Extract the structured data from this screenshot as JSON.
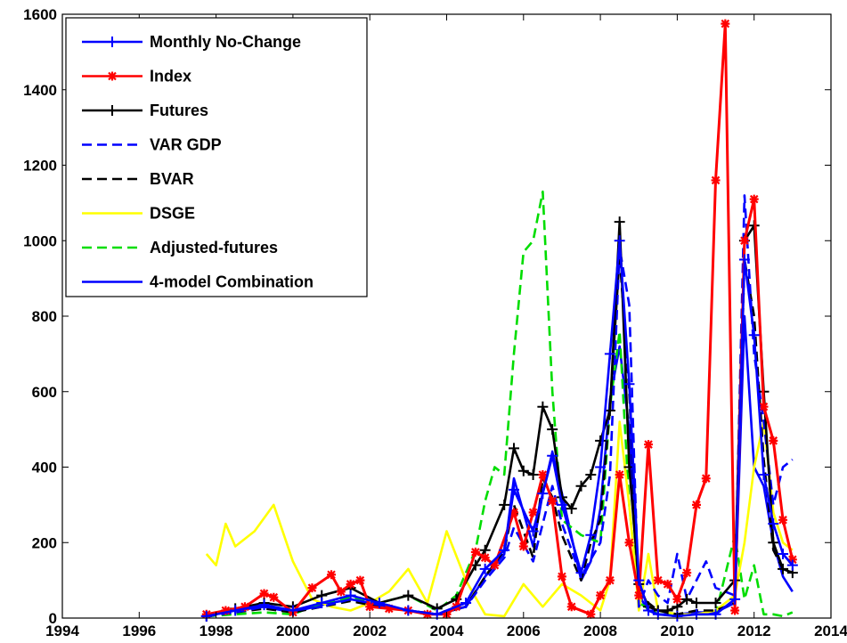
{
  "chart_data": {
    "type": "line",
    "xlim": [
      1994,
      2014
    ],
    "ylim": [
      0,
      1600
    ],
    "xticks": [
      1994,
      1996,
      1998,
      2000,
      2002,
      2004,
      2006,
      2008,
      2010,
      2012,
      2014
    ],
    "yticks": [
      0,
      200,
      400,
      600,
      800,
      1000,
      1200,
      1400,
      1600
    ],
    "xlabel": "",
    "ylabel": "",
    "title": "",
    "grid": false,
    "legend_position": "top-left",
    "series": [
      {
        "name": "Monthly No-Change",
        "color": "#0000ff",
        "dash": "solid",
        "marker": "plus",
        "x": [
          1997.75,
          1998.5,
          1999.25,
          2000,
          2000.75,
          2001.5,
          2002.25,
          2003,
          2003.75,
          2004.5,
          2005,
          2005.5,
          2005.75,
          2006.25,
          2006.5,
          2006.75,
          2007,
          2007.5,
          2007.75,
          2008,
          2008.25,
          2008.5,
          2008.75,
          2009,
          2009.25,
          2009.5,
          2010,
          2010.5,
          2011,
          2011.5,
          2011.75,
          2012,
          2012.25,
          2012.5,
          2012.75,
          2013
        ],
        "y": [
          5,
          20,
          35,
          20,
          40,
          60,
          40,
          20,
          10,
          40,
          130,
          180,
          340,
          230,
          330,
          430,
          300,
          120,
          220,
          400,
          700,
          1000,
          620,
          100,
          20,
          10,
          5,
          10,
          10,
          50,
          950,
          750,
          380,
          250,
          170,
          140
        ]
      },
      {
        "name": "Index",
        "color": "#ff0000",
        "dash": "solid",
        "marker": "star",
        "x": [
          1997.75,
          1998.25,
          1998.75,
          1999.25,
          1999.5,
          2000,
          2000.5,
          2001,
          2001.25,
          2001.5,
          2001.75,
          2002,
          2002.5,
          2003,
          2003.5,
          2004,
          2004.25,
          2004.75,
          2005,
          2005.25,
          2005.75,
          2006,
          2006.25,
          2006.5,
          2006.75,
          2007,
          2007.25,
          2007.75,
          2008,
          2008.25,
          2008.5,
          2008.75,
          2009,
          2009.25,
          2009.5,
          2009.75,
          2010,
          2010.25,
          2010.5,
          2010.75,
          2011,
          2011.25,
          2011.5,
          2011.75,
          2012,
          2012.25,
          2012.5,
          2012.75,
          2013
        ],
        "y": [
          10,
          20,
          30,
          65,
          55,
          15,
          80,
          115,
          70,
          90,
          100,
          30,
          25,
          20,
          10,
          10,
          30,
          175,
          160,
          140,
          280,
          190,
          280,
          380,
          310,
          110,
          30,
          10,
          60,
          100,
          380,
          200,
          60,
          460,
          100,
          90,
          50,
          120,
          300,
          370,
          1160,
          1575,
          20,
          1000,
          1110,
          560,
          470,
          260,
          155
        ]
      },
      {
        "name": "Futures",
        "color": "#000000",
        "dash": "solid",
        "marker": "plus",
        "x": [
          1997.75,
          1998.5,
          1999.25,
          2000,
          2000.75,
          2001.5,
          2002.25,
          2003,
          2003.75,
          2004.25,
          2004.75,
          2005,
          2005.5,
          2005.75,
          2006,
          2006.25,
          2006.5,
          2006.75,
          2007,
          2007.25,
          2007.5,
          2007.75,
          2008,
          2008.25,
          2008.5,
          2008.75,
          2009,
          2009.25,
          2009.5,
          2009.75,
          2010,
          2010.25,
          2010.5,
          2011,
          2011.5,
          2011.75,
          2012,
          2012.25,
          2012.5,
          2012.75,
          2013
        ],
        "y": [
          5,
          25,
          40,
          30,
          60,
          80,
          40,
          60,
          25,
          50,
          140,
          180,
          300,
          450,
          390,
          380,
          560,
          500,
          320,
          290,
          350,
          380,
          470,
          550,
          1050,
          400,
          90,
          30,
          20,
          20,
          30,
          50,
          40,
          40,
          100,
          1000,
          1040,
          600,
          200,
          130,
          120
        ]
      },
      {
        "name": "VAR GDP",
        "color": "#0000ff",
        "dash": "dashed",
        "marker": "none",
        "x": [
          1997.75,
          1998.5,
          1999.25,
          2000,
          2000.75,
          2001.5,
          2002.25,
          2003,
          2003.75,
          2004.5,
          2005,
          2005.5,
          2005.75,
          2006.25,
          2006.75,
          2007,
          2007.5,
          2008,
          2008.25,
          2008.5,
          2008.75,
          2009,
          2009.25,
          2009.5,
          2009.75,
          2010,
          2010.25,
          2010.5,
          2010.75,
          2011,
          2011.5,
          2011.75,
          2012,
          2012.25,
          2012.5,
          2012.75,
          2013
        ],
        "y": [
          5,
          15,
          30,
          20,
          30,
          50,
          35,
          20,
          10,
          30,
          100,
          160,
          240,
          150,
          350,
          250,
          110,
          200,
          380,
          980,
          830,
          30,
          100,
          60,
          40,
          170,
          50,
          100,
          150,
          80,
          60,
          1120,
          700,
          520,
          300,
          400,
          420
        ]
      },
      {
        "name": "BVAR",
        "color": "#000000",
        "dash": "dashed",
        "marker": "none",
        "x": [
          1997.75,
          1998.5,
          1999.25,
          2000,
          2000.75,
          2001.5,
          2002.25,
          2003,
          2003.75,
          2004.5,
          2005,
          2005.5,
          2005.75,
          2006.25,
          2006.5,
          2006.75,
          2007,
          2007.5,
          2007.75,
          2008,
          2008.25,
          2008.5,
          2008.75,
          2009,
          2009.5,
          2010,
          2010.5,
          2011,
          2011.5,
          2011.75,
          2012,
          2012.25,
          2012.5,
          2012.75,
          2013
        ],
        "y": [
          5,
          15,
          25,
          15,
          30,
          45,
          30,
          20,
          10,
          30,
          110,
          180,
          300,
          160,
          370,
          320,
          220,
          100,
          200,
          260,
          560,
          960,
          600,
          60,
          20,
          10,
          20,
          20,
          40,
          950,
          800,
          420,
          180,
          130,
          120
        ]
      },
      {
        "name": "DSGE",
        "color": "#ffff00",
        "dash": "solid",
        "marker": "none",
        "x": [
          1997.75,
          1998,
          1998.25,
          1998.5,
          1999,
          1999.5,
          2000,
          2000.5,
          2001,
          2001.5,
          2002,
          2002.5,
          2003,
          2003.5,
          2004,
          2004.5,
          2005,
          2005.5,
          2006,
          2006.5,
          2007,
          2007.5,
          2008,
          2008.25,
          2008.5,
          2008.75,
          2009,
          2009.25,
          2009.5,
          2010,
          2010.5,
          2011,
          2011.5,
          2011.75,
          2012,
          2012.25,
          2012.5,
          2012.75,
          2013
        ],
        "y": [
          170,
          140,
          250,
          190,
          230,
          300,
          150,
          50,
          30,
          20,
          40,
          70,
          130,
          40,
          230,
          100,
          10,
          5,
          90,
          30,
          90,
          60,
          20,
          100,
          520,
          300,
          20,
          170,
          20,
          10,
          10,
          20,
          60,
          200,
          400,
          520,
          280,
          200,
          180
        ]
      },
      {
        "name": "Adjusted-futures",
        "color": "#00dd00",
        "dash": "dashed",
        "marker": "none",
        "x": [
          1997.75,
          1998.5,
          1999.25,
          2000,
          2000.75,
          2001.5,
          2002.25,
          2003,
          2003.75,
          2004.25,
          2004.75,
          2005,
          2005.25,
          2005.5,
          2005.75,
          2006,
          2006.25,
          2006.5,
          2006.75,
          2007,
          2007.5,
          2008,
          2008.25,
          2008.5,
          2008.75,
          2009,
          2009.5,
          2010,
          2010.5,
          2011,
          2011.5,
          2011.75,
          2012,
          2012.25,
          2012.5,
          2012.75,
          2013
        ],
        "y": [
          5,
          10,
          15,
          10,
          40,
          55,
          40,
          60,
          20,
          60,
          180,
          310,
          400,
          380,
          700,
          970,
          1000,
          1130,
          600,
          260,
          220,
          200,
          560,
          760,
          300,
          40,
          10,
          10,
          10,
          10,
          220,
          50,
          140,
          10,
          10,
          5,
          15
        ]
      },
      {
        "name": "4-model Combination",
        "color": "#0000ff",
        "dash": "solid",
        "marker": "none",
        "x": [
          1997.75,
          1998.5,
          1999.25,
          2000,
          2000.75,
          2001.5,
          2002.25,
          2003,
          2003.75,
          2004.5,
          2005,
          2005.5,
          2005.75,
          2006.25,
          2006.5,
          2006.75,
          2007,
          2007.5,
          2007.75,
          2008,
          2008.25,
          2008.5,
          2008.75,
          2009,
          2009.25,
          2009.5,
          2010,
          2010.5,
          2011,
          2011.5,
          2011.75,
          2012,
          2012.25,
          2012.5,
          2012.75,
          2013
        ],
        "y": [
          5,
          20,
          30,
          15,
          35,
          50,
          35,
          20,
          10,
          30,
          110,
          170,
          370,
          190,
          330,
          440,
          330,
          100,
          150,
          290,
          580,
          720,
          500,
          60,
          20,
          10,
          10,
          15,
          15,
          40,
          800,
          400,
          350,
          200,
          110,
          70
        ]
      }
    ]
  }
}
